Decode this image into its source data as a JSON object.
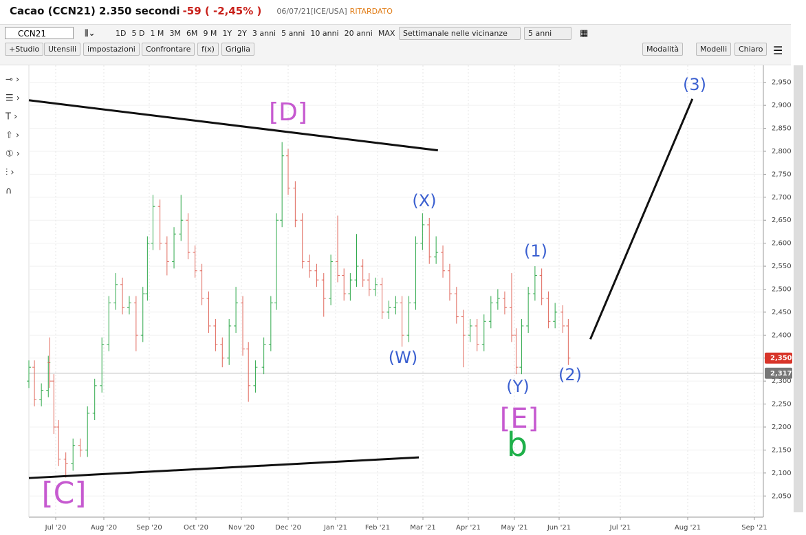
{
  "header": {
    "title": "Cacao (CCN21) 2.350 secondi",
    "change": "-59 ( -2,45% )",
    "timestamp": "06/07/21[ICE/USA]",
    "status": "RITARDATO"
  },
  "toolbar": {
    "symbol": "CCN21",
    "ranges": [
      "1D",
      "5 D",
      "1 M",
      "3M",
      "6M",
      "9 M",
      "1Y",
      "2Y",
      "3 anni",
      "5 anni",
      "10 anni",
      "20 anni",
      "MAX"
    ],
    "frequency": "Settimanale nelle vicinanze",
    "period": "5 anni",
    "buttons": [
      "+Studio",
      "Utensili",
      "impostazioni",
      "Confrontare",
      "f(x)",
      "Griglia"
    ],
    "right_buttons": [
      "Modalità",
      "Modelli",
      "Chiaro"
    ]
  },
  "chart_data": {
    "type": "ohlc",
    "up_color": "#2ea84a",
    "down_color": "#e0675b",
    "grid": true,
    "x": [
      6.42,
      6.54,
      6.69,
      6.84,
      6.87,
      6.96,
      7.06,
      7.21,
      7.36,
      7.51,
      7.66,
      7.81,
      7.96,
      8.11,
      8.26,
      8.41,
      8.56,
      8.71,
      8.86,
      8.96,
      9.08,
      9.23,
      9.38,
      9.53,
      9.68,
      9.83,
      9.98,
      10.13,
      10.28,
      10.43,
      10.58,
      10.73,
      10.88,
      11.03,
      11.15,
      11.3,
      11.48,
      11.63,
      11.75,
      11.87,
      12.0,
      12.15,
      12.3,
      12.45,
      12.6,
      12.75,
      12.9,
      13.05,
      13.2,
      13.35,
      13.5,
      13.65,
      13.8,
      13.95,
      14.1,
      14.25,
      14.4,
      14.54,
      14.69,
      14.84,
      14.99,
      15.14,
      15.29,
      15.44,
      15.59,
      15.74,
      15.89,
      16.04,
      16.19,
      16.34,
      16.49,
      16.64,
      16.79,
      16.94,
      17.04,
      17.16,
      17.31,
      17.46,
      17.61,
      17.76,
      17.91,
      18.06,
      18.15
    ],
    "open": [
      2300,
      2330,
      2260,
      2280,
      2340,
      2300,
      2200,
      2130,
      2120,
      2160,
      2150,
      2230,
      2290,
      2380,
      2470,
      2510,
      2460,
      2470,
      2400,
      2490,
      2600,
      2680,
      2600,
      2560,
      2620,
      2650,
      2580,
      2540,
      2480,
      2420,
      2380,
      2350,
      2420,
      2470,
      2370,
      2290,
      2330,
      2380,
      2470,
      2650,
      2790,
      2720,
      2650,
      2560,
      2540,
      2520,
      2480,
      2560,
      2530,
      2490,
      2520,
      2550,
      2520,
      2500,
      2510,
      2450,
      2460,
      2470,
      2400,
      2470,
      2600,
      2640,
      2570,
      2580,
      2540,
      2490,
      2440,
      2400,
      2420,
      2380,
      2430,
      2470,
      2480,
      2460,
      2400,
      2330,
      2420,
      2490,
      2530,
      2480,
      2430,
      2450,
      2420
    ],
    "high": [
      2345,
      2345,
      2295,
      2355,
      2395,
      2315,
      2215,
      2145,
      2175,
      2175,
      2245,
      2305,
      2395,
      2485,
      2535,
      2525,
      2485,
      2485,
      2505,
      2615,
      2705,
      2695,
      2615,
      2635,
      2705,
      2665,
      2595,
      2555,
      2495,
      2435,
      2395,
      2435,
      2505,
      2485,
      2385,
      2345,
      2395,
      2485,
      2665,
      2820,
      2805,
      2735,
      2665,
      2575,
      2555,
      2535,
      2575,
      2660,
      2545,
      2535,
      2620,
      2565,
      2535,
      2525,
      2525,
      2475,
      2485,
      2485,
      2485,
      2615,
      2665,
      2655,
      2615,
      2595,
      2555,
      2505,
      2455,
      2435,
      2435,
      2445,
      2485,
      2500,
      2495,
      2535,
      2415,
      2435,
      2505,
      2550,
      2545,
      2495,
      2470,
      2465,
      2435
    ],
    "low": [
      2285,
      2245,
      2245,
      2265,
      2285,
      2185,
      2115,
      2090,
      2105,
      2135,
      2135,
      2215,
      2275,
      2365,
      2455,
      2445,
      2445,
      2365,
      2385,
      2475,
      2585,
      2585,
      2530,
      2545,
      2605,
      2565,
      2525,
      2465,
      2405,
      2365,
      2330,
      2335,
      2405,
      2355,
      2255,
      2275,
      2315,
      2365,
      2455,
      2635,
      2705,
      2635,
      2545,
      2525,
      2505,
      2440,
      2465,
      2515,
      2475,
      2475,
      2505,
      2505,
      2485,
      2485,
      2435,
      2435,
      2445,
      2375,
      2385,
      2455,
      2585,
      2555,
      2555,
      2525,
      2475,
      2425,
      2330,
      2385,
      2365,
      2365,
      2415,
      2455,
      2445,
      2385,
      2315,
      2315,
      2405,
      2475,
      2465,
      2415,
      2415,
      2405,
      2335
    ],
    "close": [
      2330,
      2260,
      2280,
      2340,
      2300,
      2200,
      2130,
      2120,
      2160,
      2150,
      2230,
      2290,
      2380,
      2470,
      2510,
      2460,
      2470,
      2400,
      2490,
      2600,
      2680,
      2600,
      2560,
      2620,
      2650,
      2580,
      2540,
      2480,
      2420,
      2380,
      2350,
      2420,
      2470,
      2370,
      2290,
      2330,
      2380,
      2470,
      2650,
      2790,
      2720,
      2650,
      2560,
      2540,
      2520,
      2480,
      2560,
      2530,
      2490,
      2520,
      2550,
      2520,
      2500,
      2510,
      2450,
      2460,
      2470,
      2400,
      2470,
      2600,
      2640,
      2570,
      2580,
      2540,
      2490,
      2440,
      2400,
      2420,
      2380,
      2430,
      2470,
      2480,
      2460,
      2400,
      2330,
      2420,
      2490,
      2530,
      2480,
      2430,
      2450,
      2420,
      2350
    ],
    "xlim": [
      6.42,
      21.13
    ],
    "ylim": [
      2004,
      2987
    ],
    "xticks": [
      {
        "value": 7,
        "label": "Jul '20"
      },
      {
        "value": 8,
        "label": "Aug '20"
      },
      {
        "value": 9,
        "label": "Sep '20"
      },
      {
        "value": 10,
        "label": "Oct '20"
      },
      {
        "value": 11,
        "label": "Nov '20"
      },
      {
        "value": 12,
        "label": "Dec '20"
      },
      {
        "value": 13,
        "label": "Jan '21"
      },
      {
        "value": 14,
        "label": "Feb '21"
      },
      {
        "value": 15,
        "label": "Mar '21"
      },
      {
        "value": 16,
        "label": "Apr '21"
      },
      {
        "value": 17,
        "label": "May '21"
      },
      {
        "value": 18,
        "label": "Jun '21"
      },
      {
        "value": 19,
        "label": "Jul '21"
      },
      {
        "value": 20,
        "label": "Aug '21"
      },
      {
        "value": 21,
        "label": "Sep '21"
      }
    ],
    "yticks": [
      {
        "value": 2050,
        "label": "2,050"
      },
      {
        "value": 2100,
        "label": "2,100"
      },
      {
        "value": 2150,
        "label": "2,150"
      },
      {
        "value": 2200,
        "label": "2,200"
      },
      {
        "value": 2250,
        "label": "2,250"
      },
      {
        "value": 2300,
        "label": "2,300"
      },
      {
        "value": 2350,
        "label": "2,350"
      },
      {
        "value": 2400,
        "label": "2,400"
      },
      {
        "value": 2450,
        "label": "2,450"
      },
      {
        "value": 2500,
        "label": "2,500"
      },
      {
        "value": 2550,
        "label": "2,550"
      },
      {
        "value": 2600,
        "label": "2,600"
      },
      {
        "value": 2650,
        "label": "2,650"
      },
      {
        "value": 2700,
        "label": "2,700"
      },
      {
        "value": 2750,
        "label": "2,750"
      },
      {
        "value": 2800,
        "label": "2,800"
      },
      {
        "value": 2850,
        "label": "2,850"
      },
      {
        "value": 2900,
        "label": "2,900"
      },
      {
        "value": 2950,
        "label": "2,950"
      }
    ],
    "last_price": {
      "value": 2350,
      "label": "2,350"
    },
    "ref_price": {
      "value": 2317,
      "label": "2,317"
    },
    "trend_lines": [
      {
        "x": [
          6.42,
          15.33
        ],
        "y": [
          2911,
          2802
        ]
      },
      {
        "x": [
          6.42,
          14.91
        ],
        "y": [
          2089,
          2134
        ]
      },
      {
        "x": [
          18.51,
          20.07
        ],
        "y": [
          2391,
          2914
        ]
      }
    ],
    "annotations": [
      {
        "text": "[D]",
        "color": "#c65ad0"
      },
      {
        "text": "(X)",
        "color": "#3a5fd0"
      },
      {
        "text": "(W)",
        "color": "#3a5fd0"
      },
      {
        "text": "(1)",
        "color": "#3a5fd0"
      },
      {
        "text": "(Y)",
        "color": "#3a5fd0"
      },
      {
        "text": "(2)",
        "color": "#3a5fd0"
      },
      {
        "text": "(3)",
        "color": "#3a5fd0"
      },
      {
        "text": "[E]",
        "color": "#c65ad0"
      },
      {
        "text": "b",
        "color": "#1fb04a"
      },
      {
        "text": "[C]",
        "color": "#c65ad0"
      }
    ]
  }
}
